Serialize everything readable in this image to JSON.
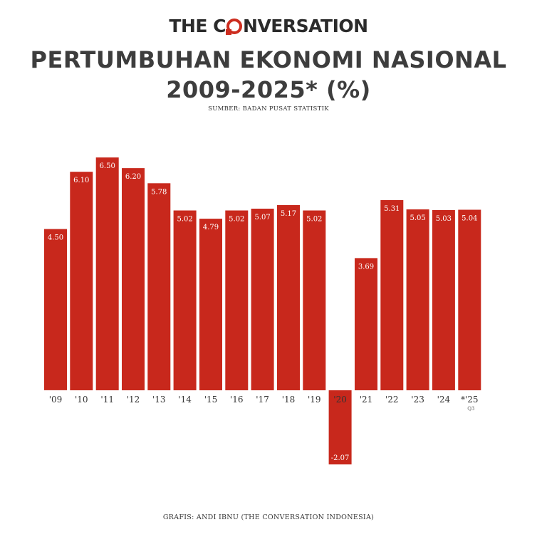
{
  "brand": {
    "prefix": "THE C",
    "suffix": "NVERSATION",
    "accent_color": "#cd2d1f",
    "logo_icon": "speech-bubble-o-icon"
  },
  "title_line1": "PERTUMBUHAN EKONOMI NASIONAL",
  "title_line2": "2009-2025* (%)",
  "source": "SUMBER: BADAN PUSAT STATISTIK",
  "credit": "GRAFIS: ANDI IBNU (THE CONVERSATION INDONESIA)",
  "chart_data": {
    "type": "bar",
    "title": "PERTUMBUHAN EKONOMI NASIONAL 2009-2025* (%)",
    "categories": [
      "'09",
      "'10",
      "'11",
      "'12",
      "'13",
      "'14",
      "'15",
      "'16",
      "'17",
      "'18",
      "'19",
      "'20",
      "'21",
      "'22",
      "'23",
      "'24",
      "*'25"
    ],
    "category_notes": {
      "*'25": "Q3"
    },
    "values": [
      4.5,
      6.1,
      6.5,
      6.2,
      5.78,
      5.02,
      4.79,
      5.02,
      5.07,
      5.17,
      5.02,
      -2.07,
      3.69,
      5.31,
      5.05,
      5.03,
      5.04
    ],
    "value_labels": [
      "4.50",
      "6.10",
      "6.50",
      "6.20",
      "5.78",
      "5.02",
      "4.79",
      "5.02",
      "5.07",
      "5.17",
      "5.02",
      "-2.07",
      "3.69",
      "5.31",
      "5.05",
      "5.03",
      "5.04"
    ],
    "bar_color": "#c8281c",
    "label_color": "#ffffff",
    "ylim": [
      -2.5,
      7
    ],
    "grid": false,
    "legend": "none",
    "xlabel": "",
    "ylabel": ""
  }
}
